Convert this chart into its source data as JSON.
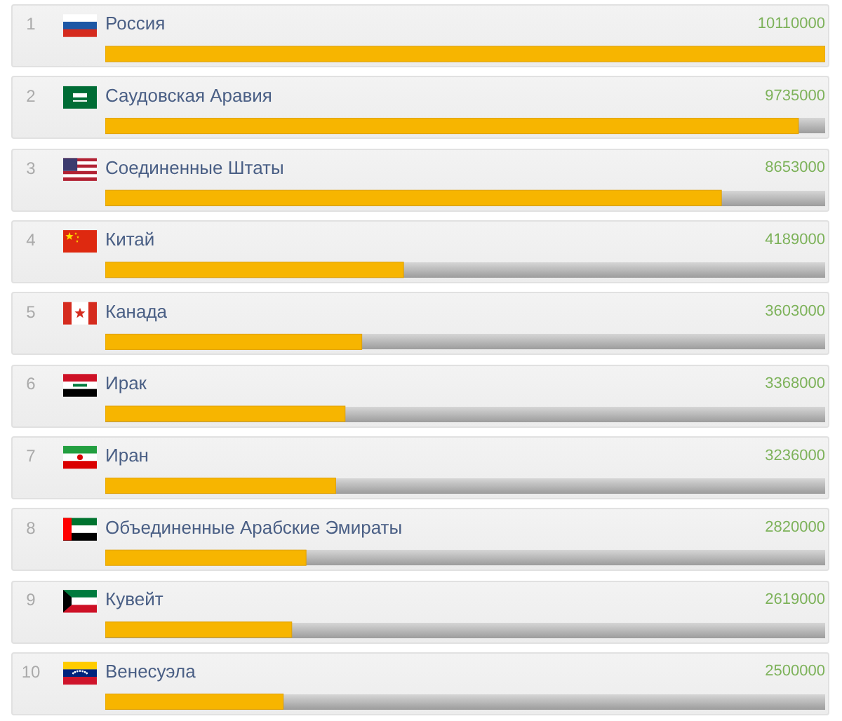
{
  "chart_data": {
    "type": "bar",
    "orientation": "horizontal",
    "categories": [
      "Россия",
      "Саудовская Аравия",
      "Соединенные Штаты",
      "Китай",
      "Канада",
      "Ирак",
      "Иран",
      "Объединенные Арабские Эмираты",
      "Кувейт",
      "Венесуэла"
    ],
    "values": [
      10110000,
      9735000,
      8653000,
      4189000,
      3603000,
      3368000,
      3236000,
      2820000,
      2619000,
      2500000
    ],
    "color": "#f7b500",
    "data_labels": true,
    "annotations": [
      "1",
      "2",
      "3",
      "4",
      "5",
      "6",
      "7",
      "8",
      "9",
      "10"
    ]
  }
}
